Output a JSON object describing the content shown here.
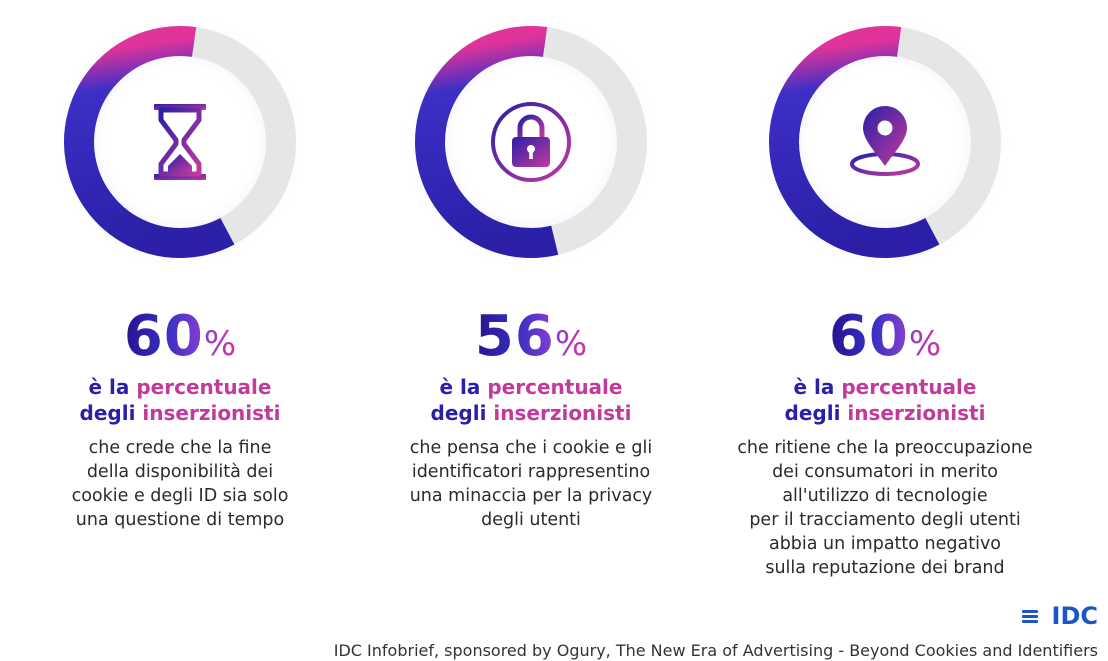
{
  "colors": {
    "arc_start": "#2a1fa6",
    "arc_end": "#e0339a",
    "track": "#e6e6e6",
    "headline_blue": "#2a1fa6",
    "headline_pink": "#c23a9e",
    "logo": "#1a57c4"
  },
  "stats": [
    {
      "value": "60",
      "percent_sign": "%",
      "fraction": 0.6,
      "icon": "hourglass-icon",
      "headline": {
        "p1": "è la ",
        "p2": "percentuale",
        "p3": "degli ",
        "p4": "inserzionisti"
      },
      "description": [
        "che crede che la fine",
        "della disponibilità dei",
        "cookie e degli ID sia solo",
        "una questione di tempo"
      ]
    },
    {
      "value": "56",
      "percent_sign": "%",
      "fraction": 0.56,
      "icon": "lock-icon",
      "headline": {
        "p1": "è la ",
        "p2": "percentuale",
        "p3": "degli ",
        "p4": "inserzionisti"
      },
      "description": [
        "che pensa che i cookie e gli",
        "identificatori rappresentino",
        "una minaccia per la privacy",
        "degli utenti"
      ]
    },
    {
      "value": "60",
      "percent_sign": "%",
      "fraction": 0.6,
      "icon": "location-pin-icon",
      "headline": {
        "p1": "è la ",
        "p2": "percentuale",
        "p3": "degli ",
        "p4": "inserzionisti"
      },
      "description": [
        "che ritiene che la preoccupazione",
        "dei consumatori in merito",
        "all'utilizzo di tecnologie",
        "per il tracciamento degli utenti",
        "abbia un impatto negativo",
        "sulla reputazione dei brand"
      ]
    }
  ],
  "logo_text": "IDC",
  "source": "IDC Infobrief, sponsored by Ogury, The New Era of Advertising - Beyond Cookies and Identifiers"
}
